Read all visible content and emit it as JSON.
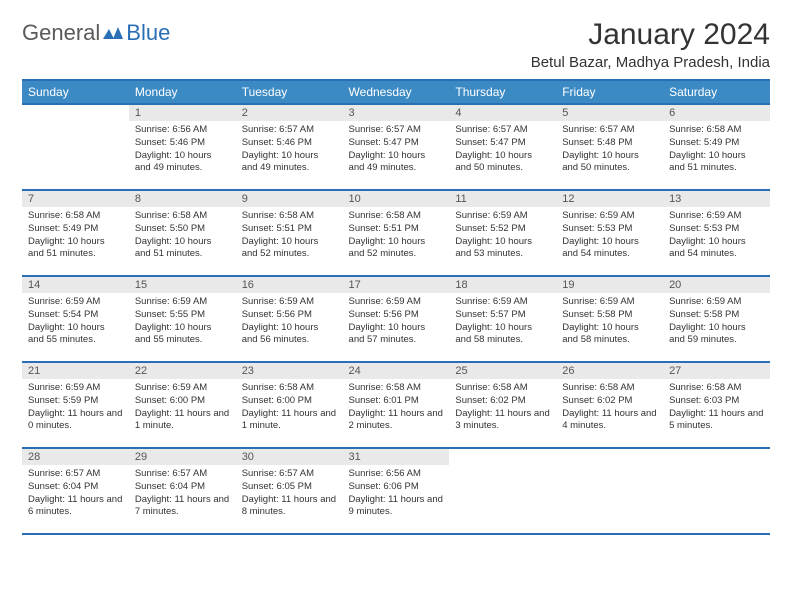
{
  "brand": {
    "first": "General",
    "second": "Blue"
  },
  "month_title": "January 2024",
  "location": "Betul Bazar, Madhya Pradesh, India",
  "columns": [
    "Sunday",
    "Monday",
    "Tuesday",
    "Wednesday",
    "Thursday",
    "Friday",
    "Saturday"
  ],
  "colors": {
    "header_bg": "#3b8ac4",
    "rule": "#2a6fb5",
    "daynum_bg": "#e9e9e9"
  },
  "weeks": [
    [
      {
        "n": "",
        "sr": "",
        "ss": "",
        "dl": ""
      },
      {
        "n": "1",
        "sr": "Sunrise: 6:56 AM",
        "ss": "Sunset: 5:46 PM",
        "dl": "Daylight: 10 hours and 49 minutes."
      },
      {
        "n": "2",
        "sr": "Sunrise: 6:57 AM",
        "ss": "Sunset: 5:46 PM",
        "dl": "Daylight: 10 hours and 49 minutes."
      },
      {
        "n": "3",
        "sr": "Sunrise: 6:57 AM",
        "ss": "Sunset: 5:47 PM",
        "dl": "Daylight: 10 hours and 49 minutes."
      },
      {
        "n": "4",
        "sr": "Sunrise: 6:57 AM",
        "ss": "Sunset: 5:47 PM",
        "dl": "Daylight: 10 hours and 50 minutes."
      },
      {
        "n": "5",
        "sr": "Sunrise: 6:57 AM",
        "ss": "Sunset: 5:48 PM",
        "dl": "Daylight: 10 hours and 50 minutes."
      },
      {
        "n": "6",
        "sr": "Sunrise: 6:58 AM",
        "ss": "Sunset: 5:49 PM",
        "dl": "Daylight: 10 hours and 51 minutes."
      }
    ],
    [
      {
        "n": "7",
        "sr": "Sunrise: 6:58 AM",
        "ss": "Sunset: 5:49 PM",
        "dl": "Daylight: 10 hours and 51 minutes."
      },
      {
        "n": "8",
        "sr": "Sunrise: 6:58 AM",
        "ss": "Sunset: 5:50 PM",
        "dl": "Daylight: 10 hours and 51 minutes."
      },
      {
        "n": "9",
        "sr": "Sunrise: 6:58 AM",
        "ss": "Sunset: 5:51 PM",
        "dl": "Daylight: 10 hours and 52 minutes."
      },
      {
        "n": "10",
        "sr": "Sunrise: 6:58 AM",
        "ss": "Sunset: 5:51 PM",
        "dl": "Daylight: 10 hours and 52 minutes."
      },
      {
        "n": "11",
        "sr": "Sunrise: 6:59 AM",
        "ss": "Sunset: 5:52 PM",
        "dl": "Daylight: 10 hours and 53 minutes."
      },
      {
        "n": "12",
        "sr": "Sunrise: 6:59 AM",
        "ss": "Sunset: 5:53 PM",
        "dl": "Daylight: 10 hours and 54 minutes."
      },
      {
        "n": "13",
        "sr": "Sunrise: 6:59 AM",
        "ss": "Sunset: 5:53 PM",
        "dl": "Daylight: 10 hours and 54 minutes."
      }
    ],
    [
      {
        "n": "14",
        "sr": "Sunrise: 6:59 AM",
        "ss": "Sunset: 5:54 PM",
        "dl": "Daylight: 10 hours and 55 minutes."
      },
      {
        "n": "15",
        "sr": "Sunrise: 6:59 AM",
        "ss": "Sunset: 5:55 PM",
        "dl": "Daylight: 10 hours and 55 minutes."
      },
      {
        "n": "16",
        "sr": "Sunrise: 6:59 AM",
        "ss": "Sunset: 5:56 PM",
        "dl": "Daylight: 10 hours and 56 minutes."
      },
      {
        "n": "17",
        "sr": "Sunrise: 6:59 AM",
        "ss": "Sunset: 5:56 PM",
        "dl": "Daylight: 10 hours and 57 minutes."
      },
      {
        "n": "18",
        "sr": "Sunrise: 6:59 AM",
        "ss": "Sunset: 5:57 PM",
        "dl": "Daylight: 10 hours and 58 minutes."
      },
      {
        "n": "19",
        "sr": "Sunrise: 6:59 AM",
        "ss": "Sunset: 5:58 PM",
        "dl": "Daylight: 10 hours and 58 minutes."
      },
      {
        "n": "20",
        "sr": "Sunrise: 6:59 AM",
        "ss": "Sunset: 5:58 PM",
        "dl": "Daylight: 10 hours and 59 minutes."
      }
    ],
    [
      {
        "n": "21",
        "sr": "Sunrise: 6:59 AM",
        "ss": "Sunset: 5:59 PM",
        "dl": "Daylight: 11 hours and 0 minutes."
      },
      {
        "n": "22",
        "sr": "Sunrise: 6:59 AM",
        "ss": "Sunset: 6:00 PM",
        "dl": "Daylight: 11 hours and 1 minute."
      },
      {
        "n": "23",
        "sr": "Sunrise: 6:58 AM",
        "ss": "Sunset: 6:00 PM",
        "dl": "Daylight: 11 hours and 1 minute."
      },
      {
        "n": "24",
        "sr": "Sunrise: 6:58 AM",
        "ss": "Sunset: 6:01 PM",
        "dl": "Daylight: 11 hours and 2 minutes."
      },
      {
        "n": "25",
        "sr": "Sunrise: 6:58 AM",
        "ss": "Sunset: 6:02 PM",
        "dl": "Daylight: 11 hours and 3 minutes."
      },
      {
        "n": "26",
        "sr": "Sunrise: 6:58 AM",
        "ss": "Sunset: 6:02 PM",
        "dl": "Daylight: 11 hours and 4 minutes."
      },
      {
        "n": "27",
        "sr": "Sunrise: 6:58 AM",
        "ss": "Sunset: 6:03 PM",
        "dl": "Daylight: 11 hours and 5 minutes."
      }
    ],
    [
      {
        "n": "28",
        "sr": "Sunrise: 6:57 AM",
        "ss": "Sunset: 6:04 PM",
        "dl": "Daylight: 11 hours and 6 minutes."
      },
      {
        "n": "29",
        "sr": "Sunrise: 6:57 AM",
        "ss": "Sunset: 6:04 PM",
        "dl": "Daylight: 11 hours and 7 minutes."
      },
      {
        "n": "30",
        "sr": "Sunrise: 6:57 AM",
        "ss": "Sunset: 6:05 PM",
        "dl": "Daylight: 11 hours and 8 minutes."
      },
      {
        "n": "31",
        "sr": "Sunrise: 6:56 AM",
        "ss": "Sunset: 6:06 PM",
        "dl": "Daylight: 11 hours and 9 minutes."
      },
      {
        "n": "",
        "sr": "",
        "ss": "",
        "dl": ""
      },
      {
        "n": "",
        "sr": "",
        "ss": "",
        "dl": ""
      },
      {
        "n": "",
        "sr": "",
        "ss": "",
        "dl": ""
      }
    ]
  ]
}
